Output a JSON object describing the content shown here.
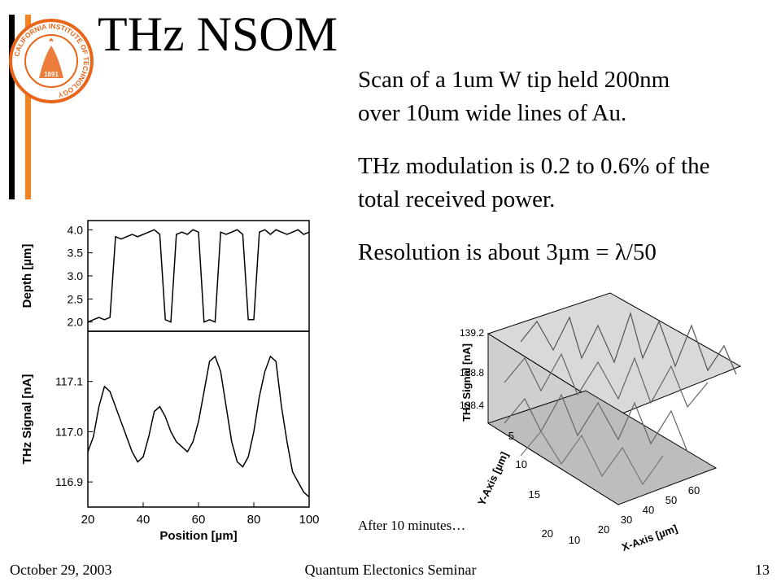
{
  "slide": {
    "title": "THz NSOM",
    "bullets": [
      "Scan of a 1um W tip held 200nm over 10um wide lines of Au.",
      "THz modulation is 0.2 to 0.6% of the total received power.",
      "Resolution is about 3µm = λ/50"
    ],
    "caption": "After 10 minutes…",
    "footer": {
      "date": "October 29, 2003",
      "title": "Quantum Electonics Seminar",
      "page": "13"
    },
    "logo_text": "CALIFORNIA INSTITUTE OF TECHNOLOGY",
    "logo_year": "1891",
    "colors": {
      "accent_orange": "#f58220",
      "logo_orange": "#e8651a"
    }
  },
  "chart_data": [
    {
      "type": "line",
      "ylabel": "Depth [µm]",
      "yticks": [
        "4.0",
        "3.5",
        "3.0",
        "2.5",
        "2.0"
      ],
      "ylim": [
        1.8,
        4.2
      ],
      "xlim": [
        20,
        100
      ],
      "x": [
        20,
        22,
        24,
        26,
        28,
        30,
        32,
        34,
        36,
        38,
        40,
        42,
        44,
        46,
        48,
        50,
        52,
        54,
        56,
        58,
        60,
        62,
        64,
        66,
        68,
        70,
        72,
        74,
        76,
        78,
        80,
        82,
        84,
        86,
        88,
        90,
        92,
        94,
        96,
        98,
        100
      ],
      "y": [
        2.0,
        2.05,
        2.1,
        2.05,
        2.1,
        3.85,
        3.8,
        3.85,
        3.9,
        3.85,
        3.9,
        3.95,
        4.0,
        3.9,
        2.05,
        2.0,
        3.9,
        3.95,
        3.9,
        4.0,
        3.95,
        2.0,
        2.05,
        2.0,
        3.95,
        3.9,
        3.95,
        4.0,
        3.9,
        2.05,
        2.05,
        3.95,
        4.0,
        3.9,
        4.0,
        3.95,
        3.9,
        3.95,
        4.0,
        3.9,
        3.95
      ]
    },
    {
      "type": "line",
      "xlabel": "Position [µm]",
      "ylabel": "THz Signal [nA]",
      "xticks": [
        "20",
        "40",
        "60",
        "80",
        "100"
      ],
      "yticks": [
        "117.1",
        "117.0",
        "116.9"
      ],
      "ylim": [
        116.85,
        117.2
      ],
      "xlim": [
        20,
        100
      ],
      "x": [
        20,
        22,
        24,
        26,
        28,
        30,
        32,
        34,
        36,
        38,
        40,
        42,
        44,
        46,
        48,
        50,
        52,
        54,
        56,
        58,
        60,
        62,
        64,
        66,
        68,
        70,
        72,
        74,
        76,
        78,
        80,
        82,
        84,
        86,
        88,
        90,
        92,
        94,
        96,
        98,
        100
      ],
      "y": [
        116.96,
        116.99,
        117.05,
        117.09,
        117.08,
        117.05,
        117.02,
        116.99,
        116.96,
        116.94,
        116.95,
        116.99,
        117.04,
        117.05,
        117.03,
        117.0,
        116.98,
        116.97,
        116.96,
        116.98,
        117.02,
        117.08,
        117.14,
        117.15,
        117.12,
        117.05,
        116.98,
        116.94,
        116.93,
        116.95,
        117.0,
        117.07,
        117.12,
        117.15,
        117.14,
        117.05,
        116.98,
        116.92,
        116.9,
        116.88,
        116.87
      ]
    },
    {
      "type": "area",
      "zlabel": "THz Signal [nA]",
      "xlabel": "X-Axis [µm]",
      "ylabel": "Y-Axis [µm]",
      "zticks": [
        "139.2",
        "138.8",
        "138.4"
      ],
      "xticks": [
        "10",
        "20",
        "30",
        "40",
        "50",
        "60"
      ],
      "yticks": [
        "5",
        "10",
        "15",
        "20"
      ],
      "grid": true
    }
  ]
}
